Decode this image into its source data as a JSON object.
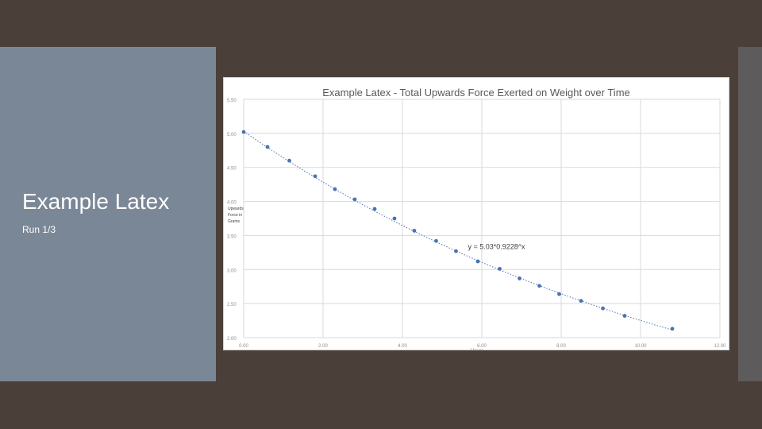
{
  "slide": {
    "title": "Example Latex",
    "subtitle": "Run 1/3"
  },
  "colors": {
    "background": "#4a3f39",
    "panel": "#7a8797",
    "series": "#4a72b0"
  },
  "chart_data": {
    "type": "scatter",
    "title": "Example Latex - Total Upwards Force Exerted on Weight over Time",
    "xlabel": "Hours",
    "ylabel": "Upwards Force in Grams",
    "xlim": [
      0,
      12
    ],
    "ylim": [
      2,
      5.5
    ],
    "x_ticks": [
      "0.00",
      "2.00",
      "4.00",
      "6.00",
      "8.00",
      "10.00",
      "12.00"
    ],
    "y_ticks": [
      "2.00",
      "2.50",
      "3.00",
      "3.50",
      "4.00",
      "4.50",
      "5.00",
      "5.50"
    ],
    "grid": true,
    "trendline": {
      "type": "exponential",
      "equation": "y = 5.03*0.9228^x",
      "a": 5.03,
      "b": 0.9228
    },
    "series": [
      {
        "points": [
          [
            0.0,
            5.02
          ],
          [
            0.6,
            4.8
          ],
          [
            1.15,
            4.6
          ],
          [
            1.8,
            4.37
          ],
          [
            2.3,
            4.18
          ],
          [
            2.8,
            4.03
          ],
          [
            3.3,
            3.89
          ],
          [
            3.8,
            3.75
          ],
          [
            4.3,
            3.57
          ],
          [
            4.85,
            3.42
          ],
          [
            5.35,
            3.27
          ],
          [
            5.9,
            3.12
          ],
          [
            6.45,
            3.01
          ],
          [
            6.95,
            2.87
          ],
          [
            7.45,
            2.76
          ],
          [
            7.95,
            2.64
          ],
          [
            8.5,
            2.54
          ],
          [
            9.05,
            2.43
          ],
          [
            9.6,
            2.32
          ],
          [
            10.8,
            2.13
          ]
        ]
      }
    ]
  }
}
